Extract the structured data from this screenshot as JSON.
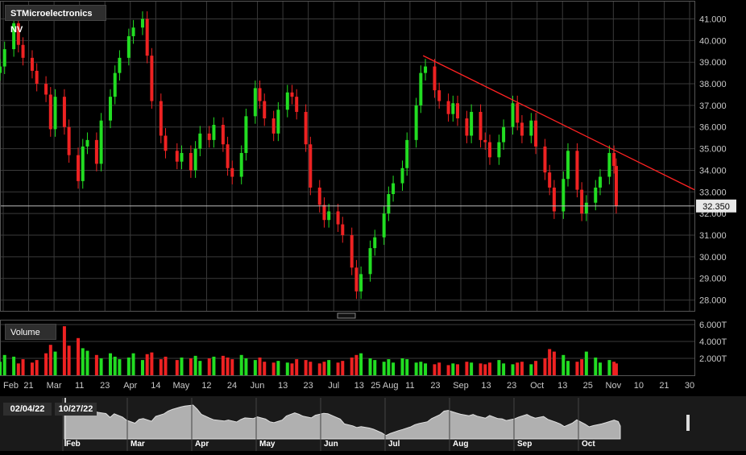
{
  "title": "STMicroelectronics NV",
  "volume_label": "Volume",
  "current_price_label": "32.350",
  "range": {
    "start": "02/04/22",
    "end": "10/27/22"
  },
  "colors": {
    "up": "#22dd22",
    "down": "#ee2222",
    "trend": "#ff2222",
    "grid": "#3a3a3a",
    "text": "#c8c8c8"
  },
  "price_ticks": [
    "41.000",
    "40.000",
    "39.000",
    "38.000",
    "37.000",
    "36.000",
    "35.000",
    "34.000",
    "33.000",
    "32.000",
    "31.000",
    "30.000",
    "29.000",
    "28.000"
  ],
  "volume_ticks": [
    "6.000T",
    "4.000T",
    "2.000T"
  ],
  "x_ticks": [
    "Feb",
    "21",
    "Mar",
    "11",
    "23",
    "Apr",
    "14",
    "May",
    "12",
    "24",
    "Jun",
    "13",
    "23",
    "Jul",
    "13",
    "25 Aug",
    "11",
    "23",
    "Sep",
    "13",
    "23",
    "Oct",
    "13",
    "25",
    "Nov",
    "10",
    "21",
    "30"
  ],
  "nav_months": [
    "Feb",
    "Mar",
    "Apr",
    "May",
    "Jun",
    "Jul",
    "Aug",
    "Sep",
    "Oct"
  ],
  "chart_data": {
    "type": "candlestick",
    "title": "STMicroelectronics NV",
    "ylim": [
      27.5,
      41.8
    ],
    "volume_ylim": [
      0,
      6.0
    ],
    "last_price": 32.35,
    "x_range": [
      "2022-02-01",
      "2022-11-30"
    ],
    "trendline": [
      {
        "date": "2022-08-04",
        "price": 39.3
      },
      {
        "date": "2022-11-30",
        "price": 33.1
      }
    ],
    "series": [
      {
        "name": "price",
        "points": [
          {
            "date": "2022-02-01",
            "price": 38.8,
            "volume": 1.6
          },
          {
            "date": "2022-02-03",
            "price": 39.6,
            "volume": 2.4
          },
          {
            "date": "2022-02-07",
            "price": 40.8,
            "volume": 2.2
          },
          {
            "date": "2022-02-09",
            "price": 39.8,
            "volume": 1.4
          },
          {
            "date": "2022-02-11",
            "price": 39.2,
            "volume": 1.9
          },
          {
            "date": "2022-02-15",
            "price": 38.6,
            "volume": 1.5
          },
          {
            "date": "2022-02-17",
            "price": 38.0,
            "volume": 1.8
          },
          {
            "date": "2022-02-21",
            "price": 37.5,
            "volume": 2.6
          },
          {
            "date": "2022-02-23",
            "price": 35.9,
            "volume": 3.6
          },
          {
            "date": "2022-02-25",
            "price": 37.4,
            "volume": 2.8
          },
          {
            "date": "2022-03-01",
            "price": 36.0,
            "volume": 5.8
          },
          {
            "date": "2022-03-03",
            "price": 34.7,
            "volume": 3.5
          },
          {
            "date": "2022-03-07",
            "price": 33.5,
            "volume": 4.4
          },
          {
            "date": "2022-03-09",
            "price": 35.1,
            "volume": 3.2
          },
          {
            "date": "2022-03-11",
            "price": 35.4,
            "volume": 2.9
          },
          {
            "date": "2022-03-15",
            "price": 34.3,
            "volume": 2.4
          },
          {
            "date": "2022-03-17",
            "price": 36.3,
            "volume": 2.0
          },
          {
            "date": "2022-03-21",
            "price": 37.4,
            "volume": 2.6
          },
          {
            "date": "2022-03-23",
            "price": 38.5,
            "volume": 2.2
          },
          {
            "date": "2022-03-25",
            "price": 39.2,
            "volume": 1.9
          },
          {
            "date": "2022-03-29",
            "price": 40.2,
            "volume": 2.1
          },
          {
            "date": "2022-03-31",
            "price": 40.6,
            "volume": 2.6
          },
          {
            "date": "2022-04-04",
            "price": 41.0,
            "volume": 1.8
          },
          {
            "date": "2022-04-06",
            "price": 39.3,
            "volume": 2.5
          },
          {
            "date": "2022-04-08",
            "price": 37.2,
            "volume": 2.7
          },
          {
            "date": "2022-04-12",
            "price": 35.6,
            "volume": 1.9
          },
          {
            "date": "2022-04-14",
            "price": 34.9,
            "volume": 2.2
          },
          {
            "date": "2022-04-19",
            "price": 34.4,
            "volume": 1.8
          },
          {
            "date": "2022-04-21",
            "price": 34.8,
            "volume": 2.1
          },
          {
            "date": "2022-04-25",
            "price": 34.0,
            "volume": 2.0
          },
          {
            "date": "2022-04-27",
            "price": 35.0,
            "volume": 2.3
          },
          {
            "date": "2022-04-29",
            "price": 35.7,
            "volume": 1.7
          },
          {
            "date": "2022-05-03",
            "price": 35.4,
            "volume": 2.0
          },
          {
            "date": "2022-05-05",
            "price": 36.1,
            "volume": 2.2
          },
          {
            "date": "2022-05-09",
            "price": 35.2,
            "volume": 2.3
          },
          {
            "date": "2022-05-11",
            "price": 34.1,
            "volume": 2.1
          },
          {
            "date": "2022-05-13",
            "price": 33.7,
            "volume": 1.9
          },
          {
            "date": "2022-05-17",
            "price": 34.8,
            "volume": 2.4
          },
          {
            "date": "2022-05-19",
            "price": 36.5,
            "volume": 2.0
          },
          {
            "date": "2022-05-23",
            "price": 37.8,
            "volume": 1.8
          },
          {
            "date": "2022-05-25",
            "price": 37.2,
            "volume": 2.1
          },
          {
            "date": "2022-05-27",
            "price": 36.4,
            "volume": 1.6
          },
          {
            "date": "2022-05-31",
            "price": 35.7,
            "volume": 1.5
          },
          {
            "date": "2022-06-02",
            "price": 36.8,
            "volume": 1.7
          },
          {
            "date": "2022-06-06",
            "price": 37.6,
            "volume": 1.5
          },
          {
            "date": "2022-06-08",
            "price": 37.4,
            "volume": 1.4
          },
          {
            "date": "2022-06-10",
            "price": 36.7,
            "volume": 1.9
          },
          {
            "date": "2022-06-14",
            "price": 35.2,
            "volume": 1.8
          },
          {
            "date": "2022-06-16",
            "price": 33.2,
            "volume": 1.6
          },
          {
            "date": "2022-06-20",
            "price": 32.4,
            "volume": 1.4
          },
          {
            "date": "2022-06-22",
            "price": 31.7,
            "volume": 1.6
          },
          {
            "date": "2022-06-24",
            "price": 32.1,
            "volume": 1.8
          },
          {
            "date": "2022-06-28",
            "price": 31.5,
            "volume": 1.5
          },
          {
            "date": "2022-06-30",
            "price": 31.0,
            "volume": 1.7
          },
          {
            "date": "2022-07-04",
            "price": 29.5,
            "volume": 2.1
          },
          {
            "date": "2022-07-06",
            "price": 28.4,
            "volume": 2.4
          },
          {
            "date": "2022-07-08",
            "price": 29.2,
            "volume": 2.6
          },
          {
            "date": "2022-07-12",
            "price": 30.4,
            "volume": 2.0
          },
          {
            "date": "2022-07-14",
            "price": 30.9,
            "volume": 1.8
          },
          {
            "date": "2022-07-18",
            "price": 32.0,
            "volume": 1.6
          },
          {
            "date": "2022-07-20",
            "price": 32.9,
            "volume": 1.9
          },
          {
            "date": "2022-07-22",
            "price": 33.4,
            "volume": 1.5
          },
          {
            "date": "2022-07-26",
            "price": 34.1,
            "volume": 2.0
          },
          {
            "date": "2022-07-28",
            "price": 35.4,
            "volume": 1.9
          },
          {
            "date": "2022-08-01",
            "price": 37.0,
            "volume": 1.5
          },
          {
            "date": "2022-08-03",
            "price": 38.5,
            "volume": 1.6
          },
          {
            "date": "2022-08-05",
            "price": 38.8,
            "volume": 1.4
          },
          {
            "date": "2022-08-09",
            "price": 37.7,
            "volume": 1.3
          },
          {
            "date": "2022-08-11",
            "price": 37.2,
            "volume": 1.5
          },
          {
            "date": "2022-08-15",
            "price": 36.6,
            "volume": 1.2
          },
          {
            "date": "2022-08-17",
            "price": 37.1,
            "volume": 1.4
          },
          {
            "date": "2022-08-19",
            "price": 36.4,
            "volume": 1.3
          },
          {
            "date": "2022-08-23",
            "price": 35.6,
            "volume": 1.6
          },
          {
            "date": "2022-08-25",
            "price": 36.7,
            "volume": 1.5
          },
          {
            "date": "2022-08-29",
            "price": 35.4,
            "volume": 1.4
          },
          {
            "date": "2022-08-31",
            "price": 35.3,
            "volume": 1.3
          },
          {
            "date": "2022-09-02",
            "price": 34.6,
            "volume": 1.5
          },
          {
            "date": "2022-09-06",
            "price": 35.3,
            "volume": 1.8
          },
          {
            "date": "2022-09-08",
            "price": 36.0,
            "volume": 1.4
          },
          {
            "date": "2022-09-12",
            "price": 37.1,
            "volume": 1.3
          },
          {
            "date": "2022-09-14",
            "price": 36.2,
            "volume": 1.5
          },
          {
            "date": "2022-09-16",
            "price": 35.6,
            "volume": 1.6
          },
          {
            "date": "2022-09-20",
            "price": 36.3,
            "volume": 1.3
          },
          {
            "date": "2022-09-22",
            "price": 35.1,
            "volume": 1.7
          },
          {
            "date": "2022-09-26",
            "price": 33.9,
            "volume": 2.0
          },
          {
            "date": "2022-09-28",
            "price": 33.2,
            "volume": 3.1
          },
          {
            "date": "2022-09-30",
            "price": 32.1,
            "volume": 2.8
          },
          {
            "date": "2022-10-04",
            "price": 33.6,
            "volume": 2.4
          },
          {
            "date": "2022-10-06",
            "price": 34.9,
            "volume": 1.7
          },
          {
            "date": "2022-10-10",
            "price": 33.1,
            "volume": 1.6
          },
          {
            "date": "2022-10-12",
            "price": 32.0,
            "volume": 1.9
          },
          {
            "date": "2022-10-14",
            "price": 32.5,
            "volume": 2.8
          },
          {
            "date": "2022-10-18",
            "price": 33.2,
            "volume": 2.1
          },
          {
            "date": "2022-10-20",
            "price": 33.7,
            "volume": 1.5
          },
          {
            "date": "2022-10-24",
            "price": 34.8,
            "volume": 1.8
          },
          {
            "date": "2022-10-26",
            "price": 34.2,
            "volume": 1.6
          },
          {
            "date": "2022-10-27",
            "price": 32.35,
            "volume": 1.4
          }
        ]
      }
    ]
  }
}
